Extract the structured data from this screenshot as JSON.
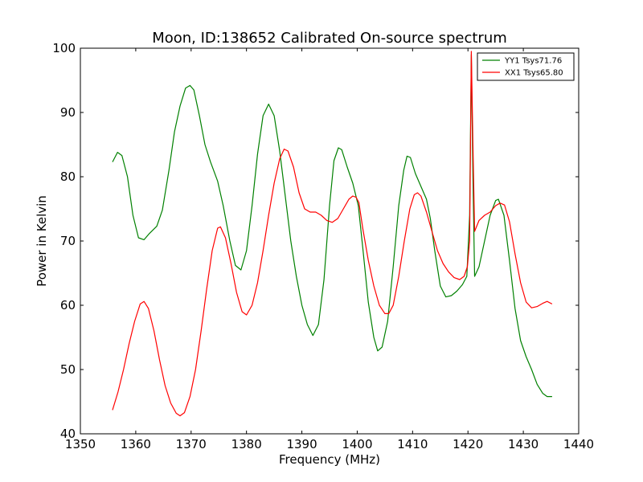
{
  "chart_data": {
    "type": "line",
    "title": "Moon, ID:138652 Calibrated On-source spectrum",
    "xlabel": "Frequency (MHz)",
    "ylabel": "Power in Kelvin",
    "xlim": [
      1350,
      1440
    ],
    "ylim": [
      40,
      100
    ],
    "xticks": [
      "1350",
      "1360",
      "1370",
      "1380",
      "1390",
      "1400",
      "1410",
      "1420",
      "1430",
      "1440"
    ],
    "yticks": [
      "40",
      "50",
      "60",
      "70",
      "80",
      "90",
      "100"
    ],
    "grid": false,
    "legend_position": "top-right",
    "series": [
      {
        "name": "YY1 Tsys71.76",
        "color": "#008000",
        "points": [
          [
            1355.8,
            82.3
          ],
          [
            1356.7,
            83.8
          ],
          [
            1357.5,
            83.3
          ],
          [
            1358.5,
            80.0
          ],
          [
            1359.5,
            74.0
          ],
          [
            1360.5,
            70.5
          ],
          [
            1361.5,
            70.2
          ],
          [
            1362.5,
            71.2
          ],
          [
            1363.8,
            72.3
          ],
          [
            1364.8,
            74.8
          ],
          [
            1366.0,
            81.0
          ],
          [
            1367.0,
            87.0
          ],
          [
            1368.0,
            91.0
          ],
          [
            1369.0,
            93.8
          ],
          [
            1369.8,
            94.2
          ],
          [
            1370.5,
            93.5
          ],
          [
            1371.5,
            89.5
          ],
          [
            1372.5,
            85.0
          ],
          [
            1373.5,
            82.3
          ],
          [
            1374.8,
            79.3
          ],
          [
            1375.8,
            75.5
          ],
          [
            1377.0,
            70.0
          ],
          [
            1378.0,
            66.2
          ],
          [
            1379.0,
            65.5
          ],
          [
            1380.0,
            68.5
          ],
          [
            1381.0,
            75.5
          ],
          [
            1382.0,
            83.5
          ],
          [
            1383.0,
            89.5
          ],
          [
            1384.0,
            91.3
          ],
          [
            1385.0,
            89.5
          ],
          [
            1386.0,
            84.0
          ],
          [
            1387.0,
            77.0
          ],
          [
            1388.0,
            70.0
          ],
          [
            1389.0,
            64.5
          ],
          [
            1390.0,
            60.0
          ],
          [
            1391.0,
            57.0
          ],
          [
            1392.0,
            55.3
          ],
          [
            1393.0,
            57.0
          ],
          [
            1394.0,
            64.0
          ],
          [
            1395.0,
            75.5
          ],
          [
            1395.8,
            82.5
          ],
          [
            1396.6,
            84.5
          ],
          [
            1397.2,
            84.2
          ],
          [
            1398.2,
            81.5
          ],
          [
            1399.2,
            79.0
          ],
          [
            1400.2,
            75.5
          ],
          [
            1401.0,
            69.0
          ],
          [
            1402.0,
            60.5
          ],
          [
            1403.0,
            55.0
          ],
          [
            1403.7,
            52.9
          ],
          [
            1404.5,
            53.5
          ],
          [
            1405.5,
            57.5
          ],
          [
            1406.5,
            66.0
          ],
          [
            1407.5,
            75.5
          ],
          [
            1408.4,
            81.0
          ],
          [
            1409.0,
            83.2
          ],
          [
            1409.6,
            83.0
          ],
          [
            1410.5,
            80.5
          ],
          [
            1411.5,
            78.5
          ],
          [
            1412.5,
            76.5
          ],
          [
            1413.2,
            73.5
          ],
          [
            1414.0,
            68.5
          ],
          [
            1415.0,
            63.0
          ],
          [
            1416.0,
            61.3
          ],
          [
            1417.0,
            61.5
          ],
          [
            1418.0,
            62.2
          ],
          [
            1419.0,
            63.2
          ],
          [
            1419.8,
            64.5
          ],
          [
            1420.3,
            74.0
          ],
          [
            1420.6,
            99.0
          ],
          [
            1420.9,
            80.0
          ],
          [
            1421.2,
            64.5
          ],
          [
            1422.0,
            66.0
          ],
          [
            1423.0,
            70.0
          ],
          [
            1424.0,
            74.0
          ],
          [
            1425.0,
            76.3
          ],
          [
            1425.5,
            76.5
          ],
          [
            1426.5,
            74.0
          ],
          [
            1427.5,
            67.0
          ],
          [
            1428.5,
            59.5
          ],
          [
            1429.5,
            54.5
          ],
          [
            1430.5,
            52.0
          ],
          [
            1431.5,
            50.0
          ],
          [
            1432.5,
            47.7
          ],
          [
            1433.5,
            46.3
          ],
          [
            1434.3,
            45.8
          ],
          [
            1435.2,
            45.8
          ]
        ]
      },
      {
        "name": "XX1 Tsys65.80",
        "color": "#ff0000",
        "points": [
          [
            1355.8,
            43.7
          ],
          [
            1356.8,
            46.5
          ],
          [
            1357.8,
            50.0
          ],
          [
            1358.8,
            54.0
          ],
          [
            1359.8,
            57.5
          ],
          [
            1360.8,
            60.2
          ],
          [
            1361.5,
            60.6
          ],
          [
            1362.3,
            59.5
          ],
          [
            1363.3,
            56.0
          ],
          [
            1364.3,
            51.5
          ],
          [
            1365.3,
            47.5
          ],
          [
            1366.3,
            44.8
          ],
          [
            1367.3,
            43.2
          ],
          [
            1368.0,
            42.8
          ],
          [
            1368.8,
            43.3
          ],
          [
            1369.8,
            45.8
          ],
          [
            1370.8,
            50.0
          ],
          [
            1371.8,
            56.0
          ],
          [
            1372.8,
            62.5
          ],
          [
            1373.8,
            68.5
          ],
          [
            1374.8,
            72.0
          ],
          [
            1375.3,
            72.2
          ],
          [
            1376.2,
            70.5
          ],
          [
            1377.2,
            66.5
          ],
          [
            1378.2,
            62.0
          ],
          [
            1379.2,
            59.0
          ],
          [
            1380.0,
            58.5
          ],
          [
            1381.0,
            60.0
          ],
          [
            1382.0,
            63.5
          ],
          [
            1383.0,
            68.5
          ],
          [
            1384.0,
            74.0
          ],
          [
            1385.0,
            79.0
          ],
          [
            1386.0,
            82.8
          ],
          [
            1386.8,
            84.3
          ],
          [
            1387.5,
            84.0
          ],
          [
            1388.5,
            81.5
          ],
          [
            1389.5,
            77.5
          ],
          [
            1390.5,
            75.0
          ],
          [
            1391.5,
            74.5
          ],
          [
            1392.5,
            74.5
          ],
          [
            1393.5,
            74.0
          ],
          [
            1394.5,
            73.2
          ],
          [
            1395.5,
            72.9
          ],
          [
            1396.5,
            73.5
          ],
          [
            1397.5,
            75.0
          ],
          [
            1398.5,
            76.5
          ],
          [
            1399.2,
            77.0
          ],
          [
            1399.8,
            76.8
          ],
          [
            1400.3,
            76.0
          ],
          [
            1401.0,
            72.0
          ],
          [
            1402.0,
            67.0
          ],
          [
            1403.0,
            63.0
          ],
          [
            1404.0,
            60.0
          ],
          [
            1405.0,
            58.7
          ],
          [
            1405.7,
            58.7
          ],
          [
            1406.5,
            60.0
          ],
          [
            1407.5,
            64.5
          ],
          [
            1408.5,
            70.0
          ],
          [
            1409.5,
            75.0
          ],
          [
            1410.3,
            77.2
          ],
          [
            1410.9,
            77.5
          ],
          [
            1411.5,
            77.0
          ],
          [
            1412.5,
            74.5
          ],
          [
            1413.5,
            71.5
          ],
          [
            1414.5,
            68.5
          ],
          [
            1415.5,
            66.5
          ],
          [
            1416.5,
            65.2
          ],
          [
            1417.5,
            64.3
          ],
          [
            1418.5,
            64.0
          ],
          [
            1419.3,
            64.5
          ],
          [
            1419.9,
            66.0
          ],
          [
            1420.3,
            70.0
          ],
          [
            1420.6,
            99.5
          ],
          [
            1420.9,
            85.0
          ],
          [
            1421.2,
            71.5
          ],
          [
            1422.0,
            73.2
          ],
          [
            1423.0,
            74.0
          ],
          [
            1424.0,
            74.5
          ],
          [
            1425.0,
            75.5
          ],
          [
            1425.8,
            75.9
          ],
          [
            1426.6,
            75.6
          ],
          [
            1427.5,
            73.0
          ],
          [
            1428.5,
            68.0
          ],
          [
            1429.5,
            63.5
          ],
          [
            1430.5,
            60.5
          ],
          [
            1431.5,
            59.6
          ],
          [
            1432.5,
            59.8
          ],
          [
            1433.5,
            60.3
          ],
          [
            1434.3,
            60.6
          ],
          [
            1435.2,
            60.2
          ]
        ]
      }
    ]
  }
}
